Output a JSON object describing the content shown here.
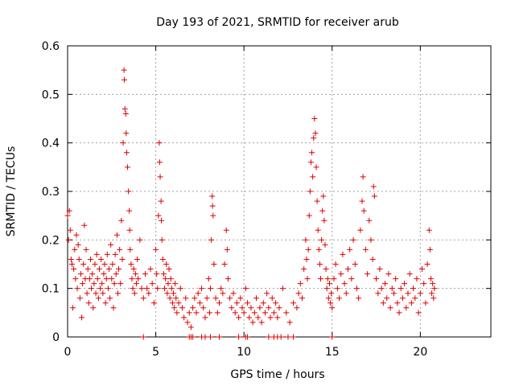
{
  "chart_data": {
    "type": "scatter",
    "title": "Day 193 of 2021, SRMTID for receiver arub",
    "xlabel": "GPS time / hours",
    "ylabel": "SRMTID / TECUs",
    "xlim": [
      0,
      24
    ],
    "ylim": [
      0,
      0.6
    ],
    "xticks": [
      0,
      5,
      10,
      15,
      20
    ],
    "xtick_labels": [
      "0",
      "5",
      "10",
      "15",
      "20"
    ],
    "yticks": [
      0,
      0.1,
      0.2,
      0.3,
      0.4,
      0.5,
      0.6
    ],
    "ytick_labels": [
      "0",
      "0.1",
      "0.2",
      "0.3",
      "0.4",
      "0.5",
      "0.6"
    ],
    "grid": true,
    "marker": "plus",
    "color": "#e00000",
    "series": [
      {
        "name": "SRMTID",
        "points": [
          [
            0.0,
            0.25
          ],
          [
            0.05,
            0.2
          ],
          [
            0.1,
            0.26
          ],
          [
            0.15,
            0.22
          ],
          [
            0.2,
            0.16
          ],
          [
            0.25,
            0.15
          ],
          [
            0.3,
            0.06
          ],
          [
            0.35,
            0.14
          ],
          [
            0.4,
            0.18
          ],
          [
            0.45,
            0.12
          ],
          [
            0.5,
            0.21
          ],
          [
            0.55,
            0.1
          ],
          [
            0.6,
            0.19
          ],
          [
            0.65,
            0.16
          ],
          [
            0.7,
            0.08
          ],
          [
            0.75,
            0.13
          ],
          [
            0.8,
            0.04
          ],
          [
            0.85,
            0.11
          ],
          [
            0.9,
            0.15
          ],
          [
            0.95,
            0.23
          ],
          [
            1.0,
            0.12
          ],
          [
            1.05,
            0.18
          ],
          [
            1.1,
            0.09
          ],
          [
            1.15,
            0.14
          ],
          [
            1.2,
            0.07
          ],
          [
            1.25,
            0.12
          ],
          [
            1.3,
            0.16
          ],
          [
            1.35,
            0.1
          ],
          [
            1.4,
            0.13
          ],
          [
            1.45,
            0.06
          ],
          [
            1.5,
            0.11
          ],
          [
            1.55,
            0.15
          ],
          [
            1.6,
            0.09
          ],
          [
            1.65,
            0.17
          ],
          [
            1.7,
            0.12
          ],
          [
            1.75,
            0.08
          ],
          [
            1.8,
            0.14
          ],
          [
            1.85,
            0.1
          ],
          [
            1.9,
            0.16
          ],
          [
            1.95,
            0.11
          ],
          [
            2.0,
            0.09
          ],
          [
            2.05,
            0.13
          ],
          [
            2.1,
            0.15
          ],
          [
            2.15,
            0.07
          ],
          [
            2.2,
            0.12
          ],
          [
            2.25,
            0.17
          ],
          [
            2.3,
            0.1
          ],
          [
            2.35,
            0.14
          ],
          [
            2.4,
            0.08
          ],
          [
            2.45,
            0.19
          ],
          [
            2.5,
            0.12
          ],
          [
            2.55,
            0.15
          ],
          [
            2.6,
            0.06
          ],
          [
            2.65,
            0.11
          ],
          [
            2.7,
            0.17
          ],
          [
            2.75,
            0.13
          ],
          [
            2.8,
            0.21
          ],
          [
            2.85,
            0.09
          ],
          [
            2.9,
            0.14
          ],
          [
            2.95,
            0.18
          ],
          [
            3.0,
            0.11
          ],
          [
            3.05,
            0.24
          ],
          [
            3.1,
            0.16
          ],
          [
            3.15,
            0.4
          ],
          [
            3.2,
            0.55
          ],
          [
            3.22,
            0.53
          ],
          [
            3.25,
            0.47
          ],
          [
            3.3,
            0.46
          ],
          [
            3.32,
            0.42
          ],
          [
            3.35,
            0.38
          ],
          [
            3.4,
            0.35
          ],
          [
            3.45,
            0.3
          ],
          [
            3.5,
            0.26
          ],
          [
            3.52,
            0.22
          ],
          [
            3.55,
            0.18
          ],
          [
            3.6,
            0.15
          ],
          [
            3.65,
            0.12
          ],
          [
            3.7,
            0.1
          ],
          [
            3.75,
            0.14
          ],
          [
            3.8,
            0.09
          ],
          [
            3.85,
            0.13
          ],
          [
            3.9,
            0.11
          ],
          [
            3.95,
            0.16
          ],
          [
            4.0,
            0.12
          ],
          [
            4.1,
            0.2
          ],
          [
            4.2,
            0.1
          ],
          [
            4.3,
            0.08
          ],
          [
            4.4,
            0.13
          ],
          [
            4.5,
            0.1
          ],
          [
            4.6,
            0.09
          ],
          [
            4.7,
            0.14
          ],
          [
            4.8,
            0.11
          ],
          [
            4.9,
            0.07
          ],
          [
            5.0,
            0.18
          ],
          [
            5.05,
            0.13
          ],
          [
            5.1,
            0.1
          ],
          [
            5.15,
            0.25
          ],
          [
            5.2,
            0.4
          ],
          [
            5.22,
            0.36
          ],
          [
            5.25,
            0.33
          ],
          [
            5.3,
            0.28
          ],
          [
            5.32,
            0.24
          ],
          [
            5.35,
            0.2
          ],
          [
            5.4,
            0.16
          ],
          [
            5.45,
            0.13
          ],
          [
            5.5,
            0.1
          ],
          [
            5.55,
            0.12
          ],
          [
            5.6,
            0.15
          ],
          [
            5.65,
            0.09
          ],
          [
            5.7,
            0.11
          ],
          [
            5.75,
            0.14
          ],
          [
            5.8,
            0.08
          ],
          [
            5.85,
            0.12
          ],
          [
            5.9,
            0.1
          ],
          [
            5.95,
            0.07
          ],
          [
            6.0,
            0.09
          ],
          [
            6.05,
            0.06
          ],
          [
            6.1,
            0.11
          ],
          [
            6.15,
            0.08
          ],
          [
            6.2,
            0.05
          ],
          [
            6.3,
            0.07
          ],
          [
            6.4,
            0.1
          ],
          [
            6.5,
            0.06
          ],
          [
            6.6,
            0.04
          ],
          [
            6.7,
            0.08
          ],
          [
            6.8,
            0.03
          ],
          [
            6.9,
            0.05
          ],
          [
            7.0,
            0.02
          ],
          [
            7.1,
            0.06
          ],
          [
            7.2,
            0.08
          ],
          [
            7.3,
            0.05
          ],
          [
            7.4,
            0.09
          ],
          [
            7.5,
            0.07
          ],
          [
            7.6,
            0.1
          ],
          [
            7.7,
            0.06
          ],
          [
            7.8,
            0.04
          ],
          [
            7.9,
            0.08
          ],
          [
            8.0,
            0.12
          ],
          [
            8.05,
            0.05
          ],
          [
            8.1,
            0.1
          ],
          [
            8.15,
            0.2
          ],
          [
            8.2,
            0.29
          ],
          [
            8.22,
            0.27
          ],
          [
            8.25,
            0.25
          ],
          [
            8.3,
            0.15
          ],
          [
            8.4,
            0.08
          ],
          [
            8.5,
            0.05
          ],
          [
            8.6,
            0.07
          ],
          [
            8.7,
            0.1
          ],
          [
            8.8,
            0.09
          ],
          [
            8.9,
            0.15
          ],
          [
            9.0,
            0.22
          ],
          [
            9.05,
            0.18
          ],
          [
            9.1,
            0.12
          ],
          [
            9.2,
            0.08
          ],
          [
            9.3,
            0.06
          ],
          [
            9.4,
            0.09
          ],
          [
            9.5,
            0.05
          ],
          [
            9.6,
            0.07
          ],
          [
            9.7,
            0.04
          ],
          [
            9.8,
            0.08
          ],
          [
            9.9,
            0.06
          ],
          [
            10.0,
            0.05
          ],
          [
            10.1,
            0.1
          ],
          [
            10.2,
            0.07
          ],
          [
            10.3,
            0.04
          ],
          [
            10.4,
            0.06
          ],
          [
            10.5,
            0.03
          ],
          [
            10.6,
            0.05
          ],
          [
            10.7,
            0.08
          ],
          [
            10.8,
            0.04
          ],
          [
            10.9,
            0.06
          ],
          [
            11.0,
            0.03
          ],
          [
            11.1,
            0.07
          ],
          [
            11.2,
            0.05
          ],
          [
            11.3,
            0.09
          ],
          [
            11.4,
            0.06
          ],
          [
            11.5,
            0.04
          ],
          [
            11.6,
            0.08
          ],
          [
            11.7,
            0.05
          ],
          [
            11.8,
            0.07
          ],
          [
            11.9,
            0.04
          ],
          [
            12.0,
            0.06
          ],
          [
            12.2,
            0.1
          ],
          [
            12.4,
            0.05
          ],
          [
            12.6,
            0.03
          ],
          [
            12.8,
            0.07
          ],
          [
            13.0,
            0.06
          ],
          [
            13.1,
            0.09
          ],
          [
            13.2,
            0.11
          ],
          [
            13.3,
            0.08
          ],
          [
            13.4,
            0.14
          ],
          [
            13.5,
            0.2
          ],
          [
            13.55,
            0.16
          ],
          [
            13.6,
            0.12
          ],
          [
            13.65,
            0.18
          ],
          [
            13.7,
            0.25
          ],
          [
            13.75,
            0.3
          ],
          [
            13.8,
            0.36
          ],
          [
            13.85,
            0.38
          ],
          [
            13.9,
            0.33
          ],
          [
            13.95,
            0.41
          ],
          [
            14.0,
            0.45
          ],
          [
            14.05,
            0.42
          ],
          [
            14.1,
            0.35
          ],
          [
            14.15,
            0.28
          ],
          [
            14.2,
            0.22
          ],
          [
            14.25,
            0.18
          ],
          [
            14.3,
            0.15
          ],
          [
            14.35,
            0.12
          ],
          [
            14.4,
            0.2
          ],
          [
            14.45,
            0.26
          ],
          [
            14.5,
            0.29
          ],
          [
            14.55,
            0.24
          ],
          [
            14.6,
            0.19
          ],
          [
            14.65,
            0.14
          ],
          [
            14.7,
            0.1
          ],
          [
            14.75,
            0.12
          ],
          [
            14.8,
            0.08
          ],
          [
            14.85,
            0.11
          ],
          [
            14.9,
            0.07
          ],
          [
            14.95,
            0.09
          ],
          [
            15.0,
            0.06
          ],
          [
            15.1,
            0.12
          ],
          [
            15.2,
            0.15
          ],
          [
            15.3,
            0.1
          ],
          [
            15.4,
            0.08
          ],
          [
            15.5,
            0.13
          ],
          [
            15.6,
            0.17
          ],
          [
            15.7,
            0.11
          ],
          [
            15.8,
            0.09
          ],
          [
            15.9,
            0.14
          ],
          [
            16.0,
            0.18
          ],
          [
            16.1,
            0.12
          ],
          [
            16.2,
            0.2
          ],
          [
            16.3,
            0.15
          ],
          [
            16.4,
            0.1
          ],
          [
            16.5,
            0.08
          ],
          [
            16.6,
            0.22
          ],
          [
            16.7,
            0.28
          ],
          [
            16.75,
            0.33
          ],
          [
            16.8,
            0.26
          ],
          [
            16.9,
            0.18
          ],
          [
            17.0,
            0.13
          ],
          [
            17.1,
            0.24
          ],
          [
            17.2,
            0.2
          ],
          [
            17.3,
            0.16
          ],
          [
            17.35,
            0.31
          ],
          [
            17.4,
            0.29
          ],
          [
            17.5,
            0.12
          ],
          [
            17.6,
            0.09
          ],
          [
            17.7,
            0.14
          ],
          [
            17.8,
            0.1
          ],
          [
            17.9,
            0.07
          ],
          [
            18.0,
            0.11
          ],
          [
            18.1,
            0.08
          ],
          [
            18.2,
            0.13
          ],
          [
            18.3,
            0.06
          ],
          [
            18.4,
            0.1
          ],
          [
            18.5,
            0.09
          ],
          [
            18.6,
            0.12
          ],
          [
            18.7,
            0.07
          ],
          [
            18.8,
            0.05
          ],
          [
            18.9,
            0.1
          ],
          [
            19.0,
            0.08
          ],
          [
            19.1,
            0.11
          ],
          [
            19.2,
            0.06
          ],
          [
            19.3,
            0.09
          ],
          [
            19.4,
            0.13
          ],
          [
            19.5,
            0.07
          ],
          [
            19.6,
            0.1
          ],
          [
            19.7,
            0.08
          ],
          [
            19.8,
            0.12
          ],
          [
            19.9,
            0.05
          ],
          [
            20.0,
            0.09
          ],
          [
            20.1,
            0.14
          ],
          [
            20.2,
            0.11
          ],
          [
            20.3,
            0.07
          ],
          [
            20.4,
            0.15
          ],
          [
            20.5,
            0.22
          ],
          [
            20.55,
            0.18
          ],
          [
            20.6,
            0.12
          ],
          [
            20.65,
            0.09
          ],
          [
            20.7,
            0.11
          ],
          [
            20.75,
            0.08
          ],
          [
            20.8,
            0.1
          ],
          [
            4.3,
            0.0
          ],
          [
            6.9,
            0.0
          ],
          [
            7.0,
            0.0
          ],
          [
            7.1,
            0.0
          ],
          [
            7.6,
            0.0
          ],
          [
            7.8,
            0.0
          ],
          [
            8.1,
            0.0
          ],
          [
            8.6,
            0.0
          ],
          [
            9.7,
            0.0
          ],
          [
            10.1,
            0.0
          ],
          [
            10.2,
            0.0
          ],
          [
            11.4,
            0.0
          ],
          [
            11.7,
            0.0
          ],
          [
            11.9,
            0.0
          ],
          [
            12.1,
            0.0
          ],
          [
            12.5,
            0.0
          ],
          [
            12.8,
            0.0
          ],
          [
            15.0,
            0.0
          ]
        ]
      }
    ]
  }
}
